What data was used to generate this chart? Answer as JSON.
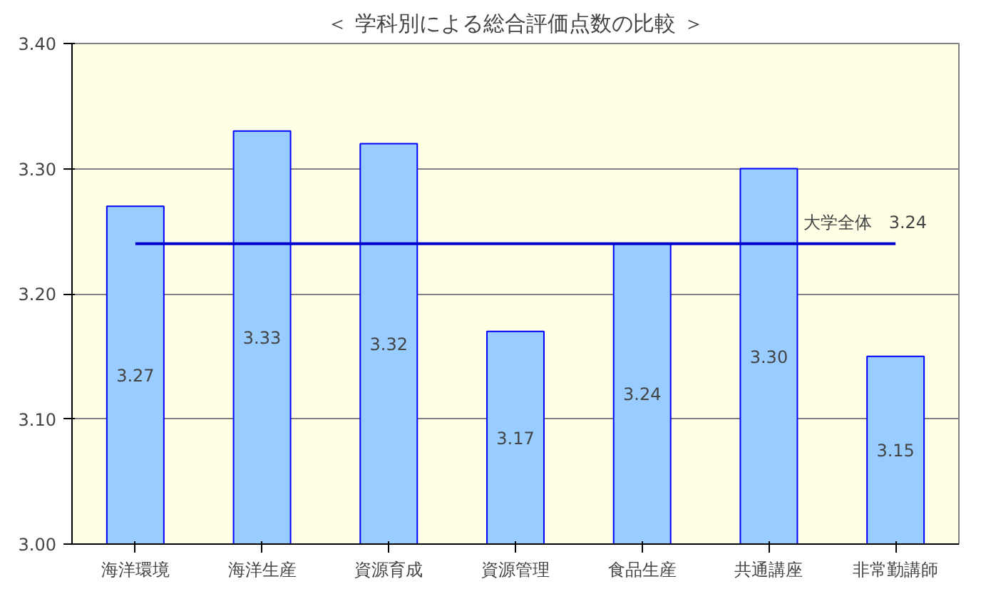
{
  "chart_data": {
    "type": "bar",
    "title": "＜ 学科別による総合評価点数の比較 ＞",
    "categories": [
      "海洋環境",
      "海洋生産",
      "資源育成",
      "資源管理",
      "食品生産",
      "共通講座",
      "非常勤講師"
    ],
    "values": [
      3.27,
      3.33,
      3.32,
      3.17,
      3.24,
      3.3,
      3.15
    ],
    "color": "#99ccff",
    "ylim": [
      3.0,
      3.4
    ],
    "yticks": [
      {
        "value": 3.0,
        "label": "3.00"
      },
      {
        "value": 3.1,
        "label": "3.10"
      },
      {
        "value": 3.2,
        "label": "3.20"
      },
      {
        "value": 3.3,
        "label": "3.30"
      },
      {
        "value": 3.4,
        "label": "3.40"
      }
    ],
    "grid": "y",
    "value_labels": [
      "3.27",
      "3.33",
      "3.32",
      "3.17",
      "3.24",
      "3.30",
      "3.15"
    ],
    "ref_lines": [
      {
        "axis": "y",
        "value": 3.24,
        "label": "大学全体　3.24",
        "color": "#0000cc"
      }
    ]
  }
}
